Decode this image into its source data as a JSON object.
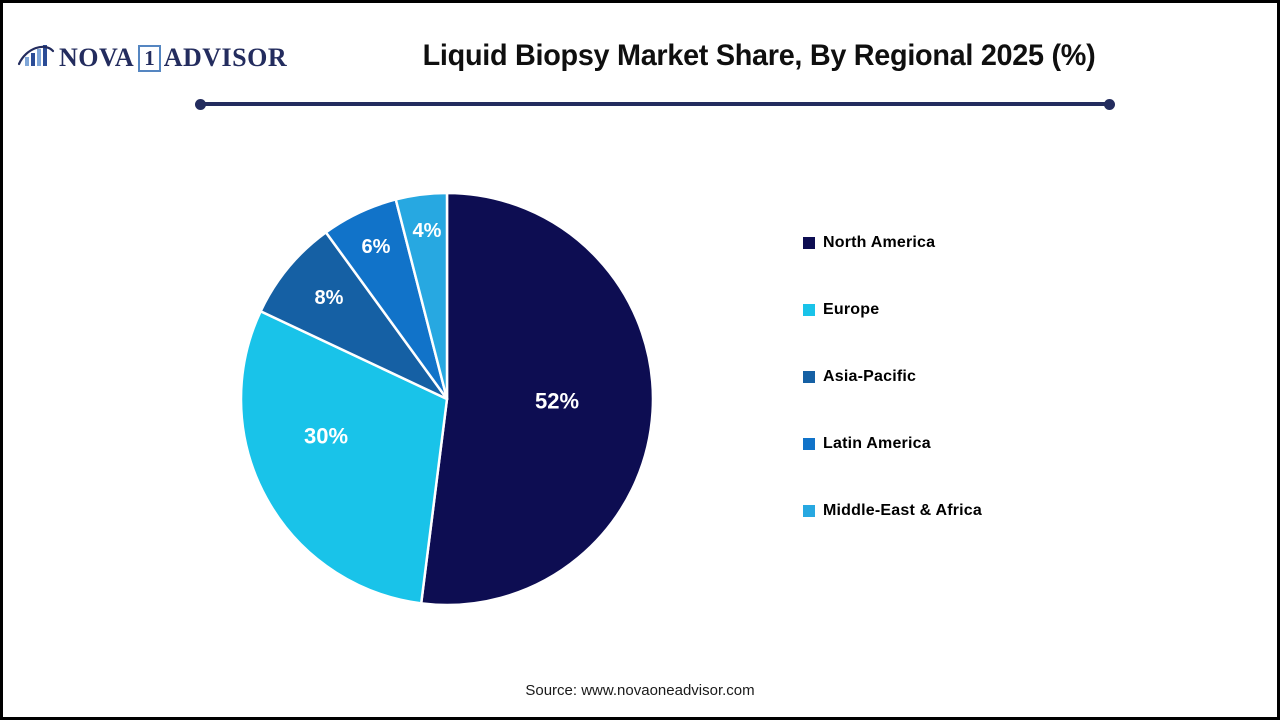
{
  "logo": {
    "part1": "NOVA",
    "badge": "1",
    "part2": "ADVISOR"
  },
  "title": "Liquid Biopsy Market Share, By Regional 2025 (%)",
  "source": "Source: www.novaoneadvisor.com",
  "colors": {
    "divider": "#232C5E",
    "logo_navy": "#232C5E",
    "logo_badge_border": "#5586C1",
    "slice_border": "#FFFFFF"
  },
  "chart_data": {
    "type": "pie",
    "title": "Liquid Biopsy Market Share, By Regional 2025 (%)",
    "start_angle_deg": 0,
    "direction": "clockwise",
    "value_suffix": "%",
    "legend_position": "right",
    "slices": [
      {
        "label": "North America",
        "value": 52,
        "color": "#0D0D52",
        "label_pos": [
          330,
          222
        ]
      },
      {
        "label": "Europe",
        "value": 30,
        "color": "#19C3E9",
        "label_pos": [
          99,
          257
        ]
      },
      {
        "label": "Asia-Pacific",
        "value": 8,
        "color": "#1560A4",
        "label_pos": [
          102,
          119
        ]
      },
      {
        "label": "Latin America",
        "value": 6,
        "color": "#1173C9",
        "label_pos": [
          149,
          68
        ]
      },
      {
        "label": "Middle-East & Africa",
        "value": 4,
        "color": "#27A8E1",
        "label_pos": [
          200,
          52
        ]
      }
    ]
  }
}
